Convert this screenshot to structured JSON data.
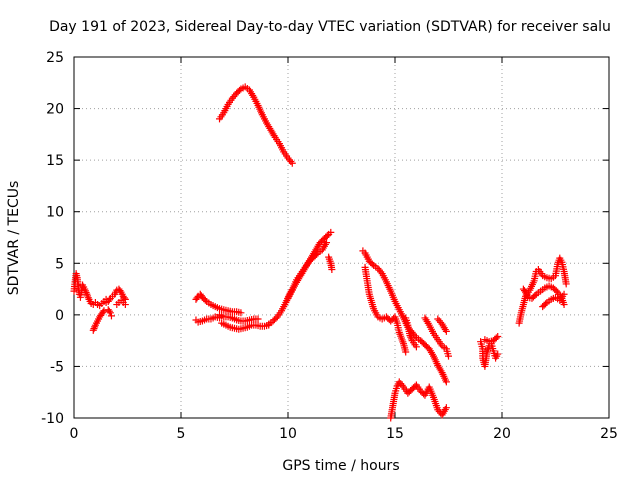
{
  "chart_data": {
    "type": "scatter",
    "title": "Day 191 of 2023, Sidereal Day-to-day VTEC variation (SDTVAR) for receiver salu",
    "xlabel": "GPS time / hours",
    "ylabel": "SDTVAR / TECUs",
    "xlim": [
      0,
      25
    ],
    "ylim": [
      -10,
      25
    ],
    "xticks": [
      0,
      5,
      10,
      15,
      20,
      25
    ],
    "yticks": [
      -10,
      -5,
      0,
      5,
      10,
      15,
      20,
      25
    ],
    "grid": true,
    "marker": "+",
    "color": "#ff0000",
    "series": [
      {
        "name": "SDTVAR",
        "segments": [
          [
            [
              0.0,
              2.3
            ],
            [
              0.05,
              3.2
            ],
            [
              0.1,
              4.0
            ],
            [
              0.15,
              3.6
            ],
            [
              0.2,
              2.8
            ],
            [
              0.25,
              2.0
            ],
            [
              0.3,
              1.7
            ],
            [
              0.35,
              2.4
            ]
          ],
          [
            [
              0.4,
              2.9
            ],
            [
              0.5,
              2.5
            ],
            [
              0.6,
              2.0
            ],
            [
              0.7,
              1.5
            ],
            [
              0.8,
              1.1
            ],
            [
              0.9,
              1.0
            ],
            [
              1.0,
              1.2
            ],
            [
              1.1,
              1.0
            ],
            [
              1.2,
              0.9
            ],
            [
              1.3,
              1.1
            ],
            [
              1.4,
              1.3
            ],
            [
              1.5,
              1.2
            ]
          ],
          [
            [
              0.9,
              -1.5
            ],
            [
              1.0,
              -1.0
            ],
            [
              1.1,
              -0.6
            ],
            [
              1.2,
              -0.2
            ],
            [
              1.3,
              0.1
            ],
            [
              1.4,
              0.4
            ]
          ],
          [
            [
              1.6,
              0.5
            ],
            [
              1.7,
              0.2
            ],
            [
              1.75,
              -0.1
            ]
          ],
          [
            [
              1.5,
              1.5
            ],
            [
              1.6,
              1.3
            ],
            [
              1.7,
              1.6
            ],
            [
              1.8,
              1.8
            ],
            [
              1.9,
              2.0
            ],
            [
              2.0,
              2.4
            ],
            [
              2.1,
              2.5
            ],
            [
              2.2,
              2.2
            ],
            [
              2.3,
              1.8
            ],
            [
              2.4,
              1.5
            ]
          ],
          [
            [
              2.0,
              1.0
            ],
            [
              2.1,
              1.2
            ],
            [
              2.2,
              1.4
            ],
            [
              2.3,
              1.2
            ],
            [
              2.4,
              1.0
            ]
          ],
          [
            [
              5.7,
              1.5
            ],
            [
              5.8,
              1.8
            ],
            [
              5.9,
              2.0
            ],
            [
              6.0,
              1.7
            ],
            [
              6.2,
              1.3
            ],
            [
              6.4,
              1.0
            ],
            [
              6.6,
              0.8
            ],
            [
              6.8,
              0.6
            ],
            [
              7.0,
              0.5
            ],
            [
              7.2,
              0.4
            ],
            [
              7.4,
              0.3
            ],
            [
              7.6,
              0.3
            ],
            [
              7.8,
              0.2
            ]
          ],
          [
            [
              5.7,
              -0.5
            ],
            [
              5.8,
              -0.7
            ],
            [
              6.0,
              -0.6
            ],
            [
              6.2,
              -0.4
            ],
            [
              6.4,
              -0.4
            ],
            [
              6.6,
              -0.2
            ],
            [
              6.8,
              -0.3
            ]
          ],
          [
            [
              6.9,
              -0.8
            ],
            [
              7.1,
              -1.0
            ],
            [
              7.3,
              -1.2
            ],
            [
              7.5,
              -1.3
            ],
            [
              7.7,
              -1.4
            ],
            [
              7.9,
              -1.3
            ],
            [
              8.1,
              -1.2
            ],
            [
              8.3,
              -1.0
            ],
            [
              8.5,
              -1.0
            ],
            [
              8.7,
              -1.1
            ],
            [
              8.9,
              -1.1
            ],
            [
              9.1,
              -1.0
            ]
          ],
          [
            [
              6.8,
              0.0
            ],
            [
              7.0,
              -0.2
            ],
            [
              7.2,
              -0.2
            ],
            [
              7.4,
              -0.3
            ],
            [
              7.6,
              -0.5
            ],
            [
              7.8,
              -0.6
            ],
            [
              8.0,
              -0.6
            ],
            [
              8.2,
              -0.5
            ],
            [
              8.4,
              -0.4
            ],
            [
              8.6,
              -0.4
            ]
          ],
          [
            [
              9.1,
              -0.9
            ],
            [
              9.3,
              -0.6
            ],
            [
              9.5,
              -0.2
            ],
            [
              9.7,
              0.4
            ],
            [
              9.9,
              1.2
            ],
            [
              10.1,
              2.1
            ],
            [
              10.3,
              2.8
            ],
            [
              10.5,
              3.5
            ],
            [
              10.7,
              4.2
            ],
            [
              10.9,
              4.9
            ],
            [
              11.1,
              5.6
            ],
            [
              11.3,
              6.3
            ],
            [
              11.5,
              7.0
            ],
            [
              11.7,
              7.4
            ],
            [
              11.9,
              7.8
            ],
            [
              12.0,
              8.0
            ]
          ],
          [
            [
              10.0,
              1.6
            ],
            [
              10.2,
              2.4
            ],
            [
              10.4,
              3.4
            ],
            [
              10.6,
              4.0
            ],
            [
              10.8,
              4.6
            ],
            [
              11.0,
              5.2
            ],
            [
              11.2,
              5.6
            ],
            [
              11.4,
              6.0
            ],
            [
              11.6,
              6.3
            ],
            [
              11.8,
              7.0
            ]
          ],
          [
            [
              11.9,
              5.6
            ],
            [
              12.0,
              5.0
            ],
            [
              12.05,
              4.4
            ]
          ],
          [
            [
              6.8,
              19.0
            ],
            [
              7.0,
              19.6
            ],
            [
              7.2,
              20.4
            ],
            [
              7.4,
              21.0
            ],
            [
              7.6,
              21.5
            ],
            [
              7.8,
              21.9
            ],
            [
              8.0,
              22.1
            ],
            [
              8.2,
              21.8
            ],
            [
              8.4,
              21.1
            ],
            [
              8.6,
              20.3
            ],
            [
              8.8,
              19.4
            ],
            [
              9.0,
              18.6
            ],
            [
              9.2,
              17.9
            ],
            [
              9.4,
              17.2
            ],
            [
              9.6,
              16.6
            ],
            [
              9.8,
              15.8
            ],
            [
              10.0,
              15.2
            ],
            [
              10.2,
              14.7
            ]
          ],
          [
            [
              13.5,
              6.2
            ],
            [
              13.6,
              6.0
            ],
            [
              13.8,
              5.2
            ],
            [
              14.0,
              4.8
            ],
            [
              14.2,
              4.5
            ],
            [
              14.4,
              4.0
            ],
            [
              14.6,
              3.2
            ],
            [
              14.8,
              2.3
            ],
            [
              15.0,
              1.3
            ],
            [
              15.2,
              0.5
            ],
            [
              15.4,
              -0.3
            ],
            [
              15.6,
              -1.2
            ],
            [
              15.8,
              -1.7
            ],
            [
              16.0,
              -2.2
            ],
            [
              16.2,
              -2.5
            ],
            [
              16.4,
              -2.9
            ],
            [
              16.6,
              -3.3
            ],
            [
              16.8,
              -4.0
            ],
            [
              17.0,
              -4.9
            ],
            [
              17.2,
              -5.6
            ],
            [
              17.4,
              -6.5
            ]
          ],
          [
            [
              13.6,
              4.6
            ],
            [
              13.7,
              3.3
            ],
            [
              13.8,
              2.0
            ],
            [
              14.0,
              0.6
            ],
            [
              14.2,
              -0.2
            ],
            [
              14.4,
              -0.4
            ],
            [
              14.6,
              -0.2
            ],
            [
              14.8,
              -0.6
            ],
            [
              15.0,
              -0.2
            ],
            [
              15.1,
              -0.8
            ],
            [
              15.2,
              -1.7
            ],
            [
              15.4,
              -2.8
            ],
            [
              15.5,
              -3.6
            ]
          ],
          [
            [
              15.5,
              -0.3
            ],
            [
              15.6,
              -1.0
            ],
            [
              15.7,
              -2.0
            ],
            [
              15.8,
              -2.5
            ],
            [
              16.0,
              -3.1
            ]
          ],
          [
            [
              14.8,
              -10.0
            ],
            [
              14.9,
              -8.8
            ],
            [
              15.0,
              -7.6
            ],
            [
              15.1,
              -6.9
            ],
            [
              15.2,
              -6.5
            ],
            [
              15.4,
              -7.0
            ],
            [
              15.6,
              -7.6
            ],
            [
              15.8,
              -7.2
            ],
            [
              16.0,
              -6.8
            ],
            [
              16.2,
              -7.4
            ],
            [
              16.4,
              -7.8
            ],
            [
              16.6,
              -7.0
            ],
            [
              16.8,
              -8.0
            ],
            [
              17.0,
              -9.2
            ],
            [
              17.2,
              -9.7
            ],
            [
              17.4,
              -9.0
            ]
          ],
          [
            [
              16.4,
              -0.3
            ],
            [
              16.6,
              -1.0
            ],
            [
              16.8,
              -1.8
            ],
            [
              17.0,
              -2.4
            ],
            [
              17.2,
              -3.0
            ],
            [
              17.4,
              -3.3
            ],
            [
              17.5,
              -4.0
            ]
          ],
          [
            [
              17.0,
              -0.4
            ],
            [
              17.2,
              -0.9
            ],
            [
              17.4,
              -1.6
            ]
          ],
          [
            [
              19.0,
              -2.6
            ],
            [
              19.1,
              -3.3
            ],
            [
              19.1,
              -4.2
            ],
            [
              19.2,
              -5.0
            ],
            [
              19.3,
              -3.6
            ],
            [
              19.4,
              -3.0
            ],
            [
              19.5,
              -2.8
            ],
            [
              19.6,
              -3.5
            ],
            [
              19.7,
              -4.2
            ],
            [
              19.8,
              -3.8
            ]
          ],
          [
            [
              19.2,
              -2.4
            ],
            [
              19.4,
              -2.6
            ],
            [
              19.6,
              -2.5
            ],
            [
              19.8,
              -2.1
            ]
          ],
          [
            [
              20.8,
              -0.8
            ],
            [
              20.9,
              0.2
            ],
            [
              21.0,
              1.0
            ],
            [
              21.1,
              1.8
            ],
            [
              21.3,
              2.4
            ],
            [
              21.5,
              3.3
            ],
            [
              21.6,
              4.2
            ],
            [
              21.7,
              4.4
            ],
            [
              21.9,
              3.8
            ],
            [
              22.1,
              3.6
            ],
            [
              22.3,
              3.5
            ],
            [
              22.5,
              3.8
            ],
            [
              22.6,
              4.9
            ],
            [
              22.7,
              5.5
            ],
            [
              22.8,
              5.1
            ],
            [
              22.9,
              4.2
            ],
            [
              23.0,
              3.0
            ]
          ],
          [
            [
              21.0,
              2.5
            ],
            [
              21.1,
              2.2
            ],
            [
              21.2,
              1.7
            ],
            [
              21.4,
              1.6
            ],
            [
              21.6,
              2.0
            ],
            [
              21.8,
              2.3
            ],
            [
              22.0,
              2.6
            ],
            [
              22.2,
              2.8
            ],
            [
              22.4,
              2.6
            ],
            [
              22.6,
              2.2
            ],
            [
              22.8,
              1.6
            ],
            [
              22.9,
              1.0
            ]
          ],
          [
            [
              21.9,
              0.8
            ],
            [
              22.1,
              1.2
            ],
            [
              22.3,
              1.5
            ],
            [
              22.5,
              1.7
            ],
            [
              22.7,
              1.4
            ],
            [
              22.9,
              2.0
            ]
          ]
        ]
      }
    ]
  }
}
